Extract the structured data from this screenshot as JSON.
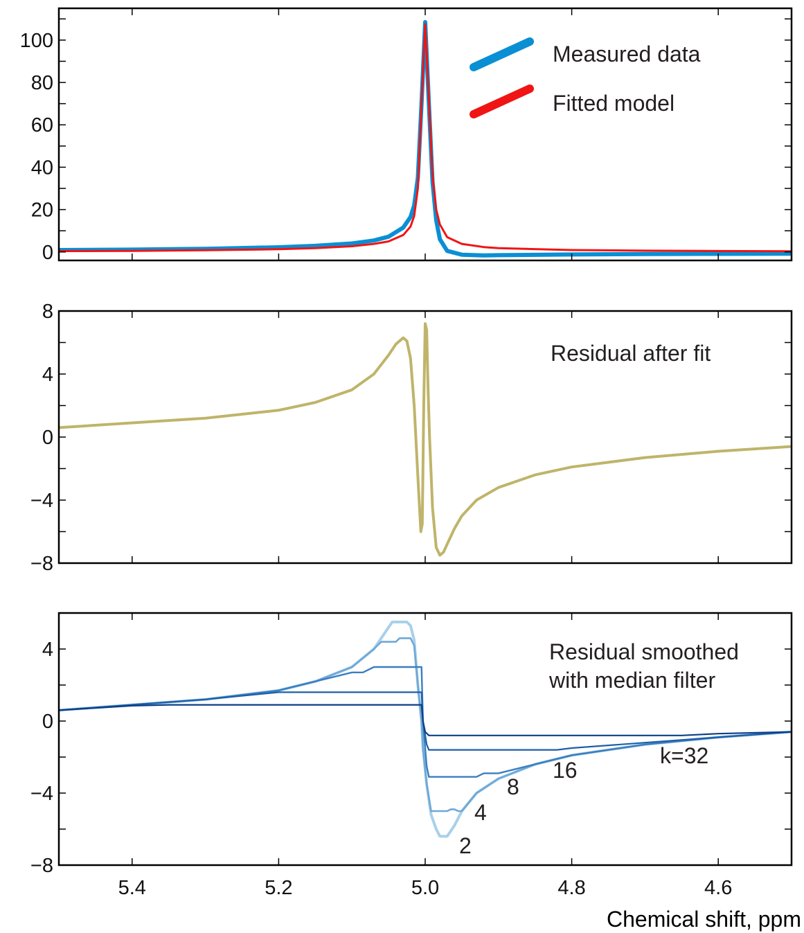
{
  "chart_data": [
    {
      "type": "line",
      "title": "",
      "xlabel": "",
      "ylabel": "",
      "xlim": [
        5.5,
        4.5
      ],
      "x_reversed": true,
      "ylim": [
        -4,
        115
      ],
      "yticks": [
        0,
        20,
        40,
        60,
        80,
        100
      ],
      "ytick_labels": [
        "0",
        "20",
        "40",
        "60",
        "80",
        "100"
      ],
      "xticks": [
        5.4,
        5.2,
        5.0,
        4.8,
        4.6
      ],
      "show_xtick_labels": false,
      "grid": false,
      "legend_position": "top-right",
      "series": [
        {
          "name": "Measured data",
          "color": "#0a8fd4",
          "x": [
            5.5,
            5.4,
            5.3,
            5.2,
            5.15,
            5.1,
            5.07,
            5.05,
            5.03,
            5.02,
            5.015,
            5.01,
            5.005,
            5.0,
            4.995,
            4.99,
            4.985,
            4.98,
            4.97,
            4.95,
            4.92,
            4.9,
            4.8,
            4.7,
            4.6,
            4.5
          ],
          "y": [
            0.9,
            1.1,
            1.5,
            2.2,
            2.9,
            4.0,
            5.4,
            7.2,
            11.5,
            16.5,
            22.0,
            35.0,
            70.0,
            108.5,
            70.0,
            33.0,
            15.0,
            6.0,
            0.5,
            -1.3,
            -1.6,
            -1.5,
            -1.2,
            -1.0,
            -0.9,
            -0.8
          ]
        },
        {
          "name": "Fitted model",
          "color": "#f01414",
          "x": [
            5.5,
            5.4,
            5.3,
            5.2,
            5.15,
            5.1,
            5.07,
            5.05,
            5.03,
            5.02,
            5.015,
            5.01,
            5.005,
            5.0,
            4.995,
            4.99,
            4.985,
            4.98,
            4.97,
            4.95,
            4.92,
            4.9,
            4.8,
            4.7,
            4.6,
            4.5
          ],
          "y": [
            0.4,
            0.5,
            0.8,
            1.3,
            1.8,
            2.7,
            3.8,
            5.0,
            8.0,
            12.0,
            17.0,
            30.0,
            70.0,
            107.5,
            72.0,
            36.0,
            20.0,
            13.0,
            7.0,
            3.8,
            2.3,
            1.8,
            0.9,
            0.6,
            0.45,
            0.35
          ]
        }
      ]
    },
    {
      "type": "line",
      "title": "",
      "xlabel": "",
      "ylabel": "",
      "xlim": [
        5.5,
        4.5
      ],
      "x_reversed": true,
      "ylim": [
        -8,
        8
      ],
      "yticks": [
        -8,
        -4,
        0,
        4,
        8
      ],
      "ytick_labels": [
        "−8",
        "−4",
        "0",
        "4",
        "8"
      ],
      "xticks": [
        5.4,
        5.2,
        5.0,
        4.8,
        4.6
      ],
      "show_xtick_labels": false,
      "grid": false,
      "annotation": "Residual after fit",
      "series": [
        {
          "color": "#bfb46a",
          "x": [
            5.5,
            5.4,
            5.3,
            5.2,
            5.15,
            5.1,
            5.07,
            5.05,
            5.04,
            5.03,
            5.025,
            5.02,
            5.015,
            5.01,
            5.006,
            5.004,
            5.002,
            5.0,
            4.998,
            4.996,
            4.994,
            4.99,
            4.985,
            4.98,
            4.975,
            4.97,
            4.96,
            4.95,
            4.93,
            4.9,
            4.85,
            4.8,
            4.7,
            4.6,
            4.5
          ],
          "y": [
            0.6,
            0.9,
            1.2,
            1.7,
            2.2,
            3.0,
            4.0,
            5.2,
            5.9,
            6.3,
            6.1,
            5.0,
            2.0,
            -2.5,
            -6.0,
            -5.5,
            2.0,
            7.2,
            6.8,
            3.0,
            0.0,
            -4.5,
            -7.0,
            -7.5,
            -7.3,
            -6.8,
            -5.8,
            -5.0,
            -4.0,
            -3.2,
            -2.4,
            -1.9,
            -1.3,
            -0.9,
            -0.6
          ]
        }
      ]
    },
    {
      "type": "line",
      "title": "",
      "xlabel": "Chemical shift, ppm",
      "ylabel": "",
      "xlim": [
        5.5,
        4.5
      ],
      "x_reversed": true,
      "ylim": [
        -8,
        6
      ],
      "yticks": [
        -8,
        -4,
        0,
        4
      ],
      "ytick_labels": [
        "−8",
        "−4",
        "0",
        "4"
      ],
      "xticks": [
        5.4,
        5.2,
        5.0,
        4.8,
        4.6
      ],
      "xtick_labels": [
        "5.4",
        "5.2",
        "5.0",
        "4.8",
        "4.6"
      ],
      "show_xtick_labels": true,
      "grid": false,
      "annotation_lines": [
        "Residual smoothed",
        "with median filter"
      ],
      "series_labels": [
        "2",
        "4",
        "8",
        "16",
        "k=32"
      ],
      "series": [
        {
          "k": 2,
          "color": "#a9d0ea",
          "x": [
            5.5,
            5.4,
            5.3,
            5.2,
            5.15,
            5.1,
            5.07,
            5.05,
            5.045,
            5.025,
            5.02,
            5.015,
            5.01,
            5.005,
            5.003,
            4.998,
            4.992,
            4.985,
            4.98,
            4.975,
            4.97,
            4.96,
            4.95,
            4.93,
            4.9,
            4.85,
            4.8,
            4.7,
            4.6,
            4.5
          ],
          "y": [
            0.6,
            0.9,
            1.2,
            1.7,
            2.2,
            3.0,
            4.0,
            5.2,
            5.5,
            5.5,
            5.3,
            4.5,
            2.0,
            0.0,
            -1.5,
            -3.5,
            -5.2,
            -6.0,
            -6.4,
            -6.4,
            -6.4,
            -5.8,
            -5.0,
            -4.0,
            -3.2,
            -2.4,
            -1.9,
            -1.3,
            -0.9,
            -0.6
          ]
        },
        {
          "k": 4,
          "color": "#6fa8d6",
          "x": [
            5.5,
            5.4,
            5.3,
            5.2,
            5.15,
            5.1,
            5.07,
            5.06,
            5.04,
            5.035,
            5.02,
            5.015,
            5.01,
            5.005,
            5.003,
            4.998,
            4.992,
            4.975,
            4.97,
            4.965,
            4.96,
            4.955,
            4.95,
            4.93,
            4.9,
            4.85,
            4.8,
            4.7,
            4.6,
            4.5
          ],
          "y": [
            0.6,
            0.9,
            1.2,
            1.7,
            2.2,
            3.0,
            4.0,
            4.4,
            4.4,
            4.6,
            4.6,
            4.2,
            2.0,
            0.0,
            -1.5,
            -3.5,
            -5.0,
            -5.0,
            -5.0,
            -4.9,
            -4.9,
            -5.0,
            -5.0,
            -4.0,
            -3.2,
            -2.4,
            -1.9,
            -1.3,
            -0.9,
            -0.6
          ]
        },
        {
          "k": 8,
          "color": "#3b7ec0",
          "x": [
            5.5,
            5.4,
            5.3,
            5.2,
            5.15,
            5.1,
            5.085,
            5.07,
            5.005,
            5.003,
            4.998,
            4.995,
            4.995,
            4.93,
            4.92,
            4.9,
            4.85,
            4.8,
            4.7,
            4.6,
            4.5
          ],
          "y": [
            0.6,
            0.9,
            1.2,
            1.7,
            2.2,
            2.7,
            2.7,
            3.0,
            3.0,
            0.0,
            -2.5,
            -3.1,
            -3.1,
            -3.1,
            -2.9,
            -2.9,
            -2.4,
            -1.9,
            -1.3,
            -0.9,
            -0.6
          ]
        },
        {
          "k": 16,
          "color": "#1d5fa6",
          "x": [
            5.5,
            5.4,
            5.3,
            5.2,
            5.005,
            5.003,
            4.998,
            4.995,
            4.82,
            4.8,
            4.7,
            4.6,
            4.5
          ],
          "y": [
            0.6,
            0.9,
            1.2,
            1.6,
            1.6,
            0.0,
            -1.3,
            -1.6,
            -1.6,
            -1.5,
            -1.2,
            -0.9,
            -0.6
          ]
        },
        {
          "k": 32,
          "color": "#0d3f86",
          "x": [
            5.5,
            5.4,
            5.35,
            5.005,
            5.003,
            5.0,
            4.995,
            4.65,
            4.6,
            4.5
          ],
          "y": [
            0.6,
            0.85,
            0.9,
            0.9,
            0.0,
            -0.6,
            -0.8,
            -0.8,
            -0.7,
            -0.6
          ]
        }
      ]
    }
  ]
}
